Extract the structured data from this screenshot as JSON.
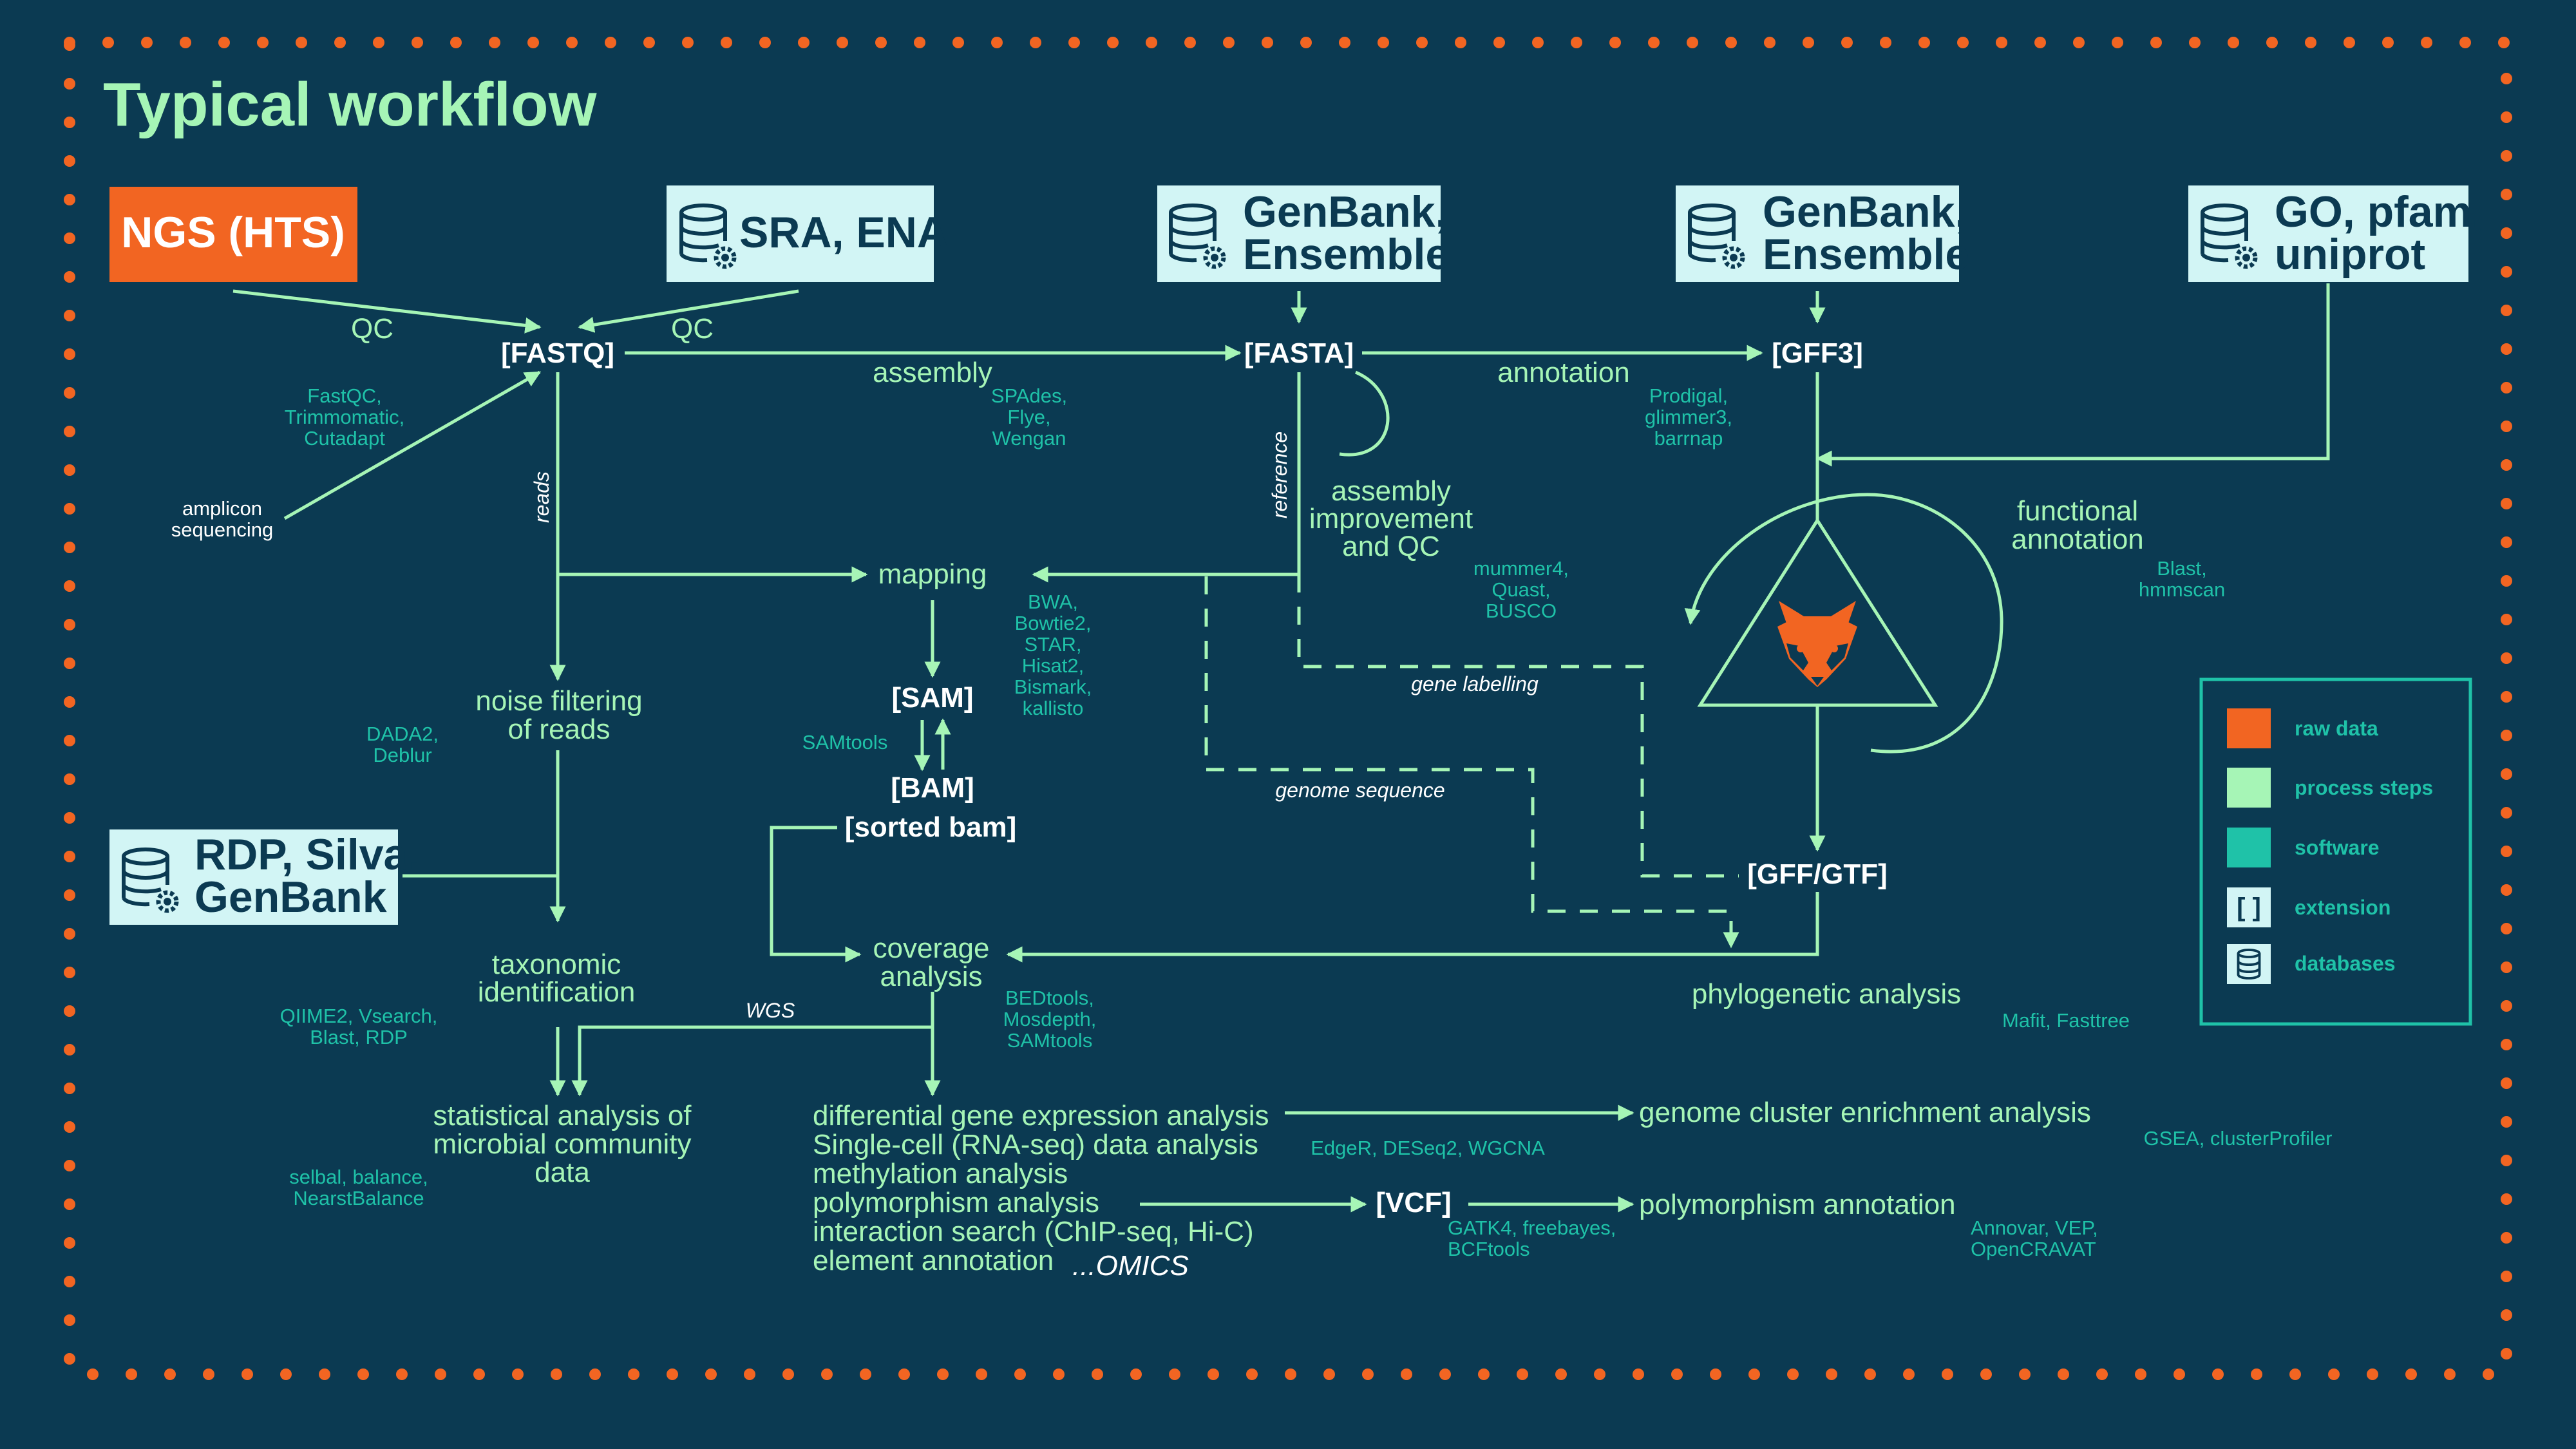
{
  "title": "Typical workflow",
  "colors": {
    "background": "#0b3a52",
    "raw_data": "#f26522",
    "process": "#a6f5b6",
    "software": "#1fc2a8",
    "database_box": "#d2f5f5"
  },
  "raw": {
    "ngs": "NGS (HTS)"
  },
  "databases": {
    "sra": [
      "SRA, ENA"
    ],
    "genbank1": [
      "GenBank,",
      "Ensemble"
    ],
    "genbank2": [
      "GenBank,",
      "Ensemble"
    ],
    "go": [
      "GO, pfam,",
      "uniprot"
    ],
    "rdp": [
      "RDP, Silva,",
      "GenBank"
    ]
  },
  "extensions": {
    "fastq": "[FASTQ]",
    "fasta": "[FASTA]",
    "gff3": "[GFF3]",
    "sam": "[SAM]",
    "bam": "[BAM]",
    "sorted_bam": "[sorted bam]",
    "gff_gtf": "[GFF/GTF]",
    "vcf": "[VCF]"
  },
  "steps": {
    "qc_left": "QC",
    "qc_right": "QC",
    "assembly": "assembly",
    "annotation": "annotation",
    "mapping": "mapping",
    "assembly_improvement": [
      "assembly",
      "improvement",
      "and QC"
    ],
    "functional_annotation": [
      "functional",
      "annotation"
    ],
    "noise_filtering": [
      "noise filtering",
      "of reads"
    ],
    "taxonomic": [
      "taxonomic",
      "identification"
    ],
    "statistical": [
      "statistical analysis of",
      "microbial community",
      "data"
    ],
    "coverage": [
      "coverage",
      "analysis"
    ],
    "phylogenetic": "phylogenetic analysis",
    "downstream": [
      "differential gene expression analysis",
      "Single-cell (RNA-seq) data analysis",
      "methylation analysis",
      "polymorphism analysis",
      "interaction search (ChIP-seq, Hi-C)",
      "element annotation"
    ],
    "genome_cluster": "genome cluster enrichment analysis",
    "polymorphism_annotation": "polymorphism annotation"
  },
  "software": {
    "fastqc": [
      "FastQC,",
      "Trimmomatic,",
      "Cutadapt"
    ],
    "spades": [
      "SPAdes,",
      "Flye,",
      "Wengan"
    ],
    "prodigal": [
      "Prodigal,",
      "glimmer3,",
      "barrnap"
    ],
    "mummer": [
      "mummer4,",
      "Quast,",
      "BUSCO"
    ],
    "blast": [
      "Blast,",
      "hmmscan"
    ],
    "bwa": [
      "BWA,",
      "Bowtie2,",
      "STAR,",
      "Hisat2,",
      "Bismark,",
      "kallisto"
    ],
    "samtools": "SAMtools",
    "dada2": [
      "DADA2,",
      "Deblur"
    ],
    "qiime": [
      "QIIME2, Vsearch,",
      "Blast, RDP"
    ],
    "selbal": [
      "selbal, balance,",
      "NearstBalance"
    ],
    "bedtools": [
      "BEDtools,",
      "Mosdepth,",
      "SAMtools"
    ],
    "mafit": "Mafit, Fasttree",
    "edger": "EdgeR, DESeq2, WGCNA",
    "gsea": "GSEA, clusterProfiler",
    "gatk": [
      "GATK4, freebayes,",
      "BCFtools"
    ],
    "annovar": [
      "Annovar, VEP,",
      "OpenCRAVAT"
    ]
  },
  "labels": {
    "amplicon": [
      "amplicon",
      "sequencing"
    ],
    "reads": "reads",
    "reference": "reference",
    "gene_labelling": "gene labelling",
    "genome_sequence": "genome sequence",
    "wgs": "WGS",
    "omics": "...OMICS"
  },
  "legend": {
    "items": [
      {
        "label": "raw data",
        "color": "#f26522",
        "kind": "swatch"
      },
      {
        "label": "process steps",
        "color": "#a6f5b6",
        "kind": "swatch"
      },
      {
        "label": "software",
        "color": "#1fc2a8",
        "kind": "swatch"
      },
      {
        "label": "extension",
        "color": "#d2f5f5",
        "kind": "bracket",
        "symbol": "[ ]"
      },
      {
        "label": "databases",
        "color": "#d2f5f5",
        "kind": "database"
      }
    ]
  }
}
